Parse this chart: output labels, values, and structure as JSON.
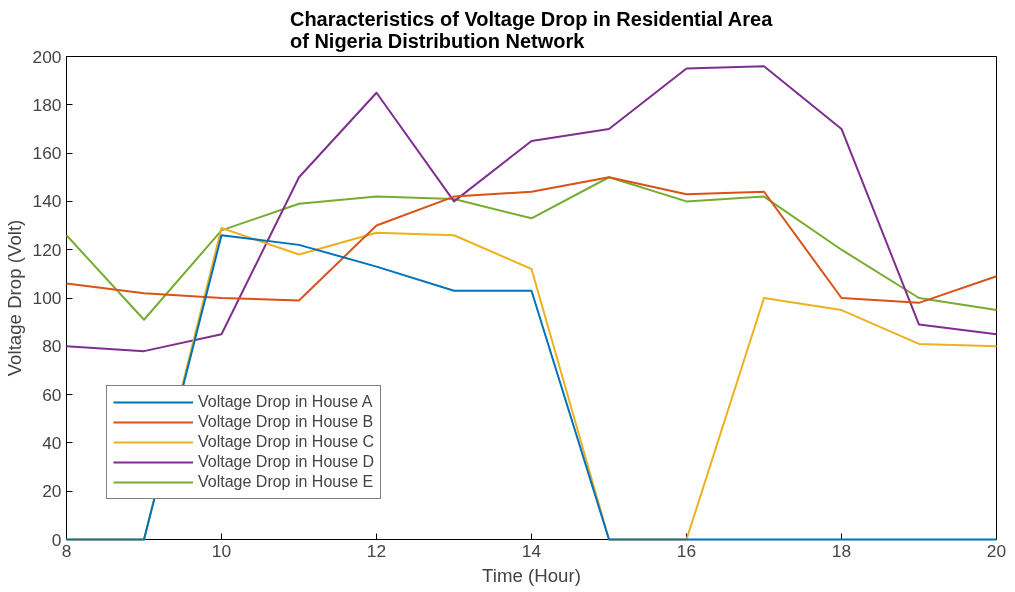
{
  "chart_data": {
    "type": "line",
    "title": "Characteristics of Voltage Drop in Residential Area\nof Nigeria Distribution Network",
    "xlabel": "Time (Hour)",
    "ylabel": "Voltage Drop (Volt)",
    "x": [
      8,
      9,
      10,
      11,
      12,
      13,
      14,
      15,
      16,
      17,
      18,
      19,
      20
    ],
    "xlim": [
      8,
      20
    ],
    "xticks": [
      8,
      10,
      12,
      14,
      16,
      18,
      20
    ],
    "ylim": [
      0,
      200
    ],
    "yticks": [
      0,
      20,
      40,
      60,
      80,
      100,
      120,
      140,
      160,
      180,
      200
    ],
    "grid": false,
    "legend": "bottom left",
    "marker": "none",
    "line_style": "solid",
    "series": [
      {
        "name": "Voltage Drop in House A",
        "color": "#0072bd",
        "values": [
          0,
          0,
          126,
          122,
          113,
          103,
          103,
          0,
          0,
          0,
          0,
          0,
          0
        ]
      },
      {
        "name": "Voltage Drop in House B",
        "color": "#d95319",
        "values": [
          106,
          102,
          100,
          99,
          130,
          142,
          144,
          150,
          143,
          144,
          100,
          98,
          109
        ]
      },
      {
        "name": "Voltage Drop in House C",
        "color": "#edb120",
        "values": [
          0,
          0,
          129,
          118,
          127,
          126,
          112,
          0,
          0,
          100,
          95,
          81,
          80
        ]
      },
      {
        "name": "Voltage Drop in House D",
        "color": "#7e2f8e",
        "values": [
          80,
          78,
          85,
          150,
          185,
          140,
          165,
          170,
          195,
          196,
          170,
          89,
          85
        ]
      },
      {
        "name": "Voltage Drop in House E",
        "color": "#77ac30",
        "values": [
          126,
          91,
          128,
          139,
          142,
          141,
          133,
          150,
          140,
          142,
          120,
          100,
          95
        ]
      }
    ]
  }
}
